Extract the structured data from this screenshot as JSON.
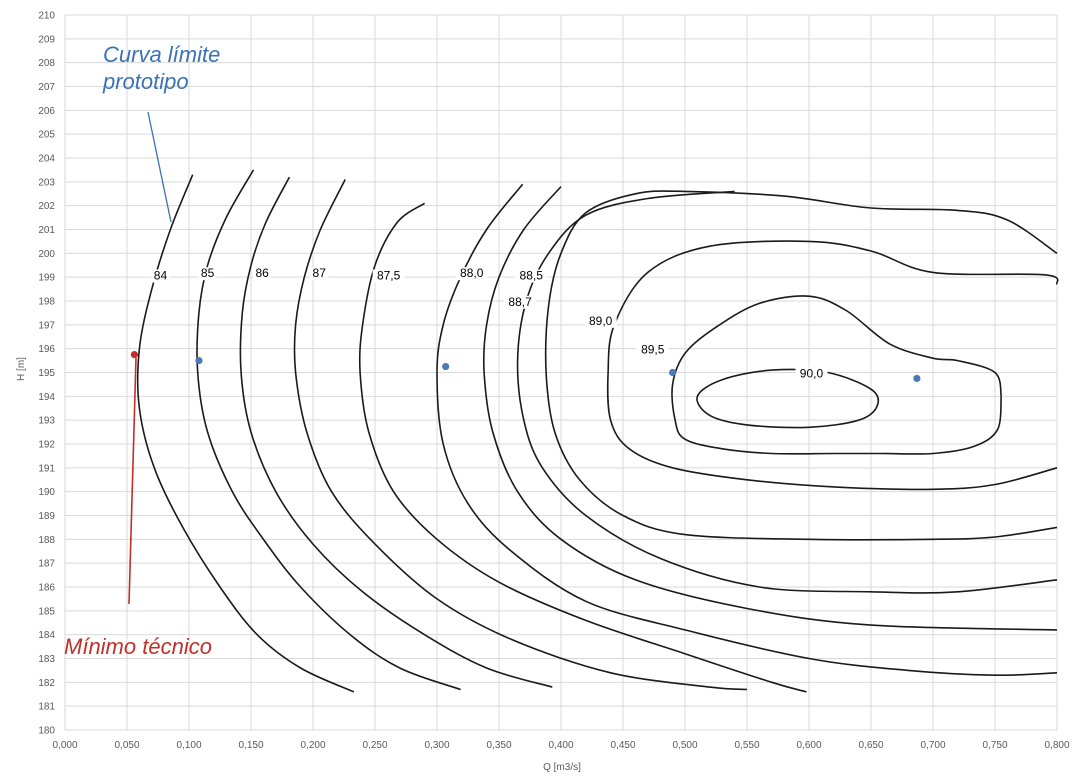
{
  "chart_data": {
    "type": "line",
    "xlabel": "Q [m3/s]",
    "ylabel": "H [m]",
    "xlim": [
      0,
      0.8
    ],
    "ylim": [
      180,
      210
    ],
    "grid": true,
    "x_ticks": [
      0,
      0.05,
      0.1,
      0.15,
      0.2,
      0.25,
      0.3,
      0.35,
      0.4,
      0.45,
      0.5,
      0.55,
      0.6,
      0.65,
      0.7,
      0.75,
      0.8
    ],
    "x_tick_labels": [
      "0,000",
      "0,050",
      "0,100",
      "0,150",
      "0,200",
      "0,250",
      "0,300",
      "0,350",
      "0,400",
      "0,450",
      "0,500",
      "0,550",
      "0,600",
      "0,650",
      "0,700",
      "0,750",
      "0,800"
    ],
    "y_ticks": [
      180,
      181,
      182,
      183,
      184,
      185,
      186,
      187,
      188,
      189,
      190,
      191,
      192,
      193,
      194,
      195,
      196,
      197,
      198,
      199,
      200,
      201,
      202,
      203,
      204,
      205,
      206,
      207,
      208,
      209,
      210
    ],
    "series": [
      {
        "name": "84",
        "label_at": [
          0.077,
          198.9
        ],
        "closed": false,
        "points": [
          [
            0.103,
            203.3
          ],
          [
            0.085,
            201.0
          ],
          [
            0.07,
            198.5
          ],
          [
            0.06,
            196.0
          ],
          [
            0.06,
            193.5
          ],
          [
            0.072,
            191.0
          ],
          [
            0.095,
            188.5
          ],
          [
            0.125,
            186.0
          ],
          [
            0.155,
            184.0
          ],
          [
            0.19,
            182.6
          ],
          [
            0.233,
            181.6
          ]
        ]
      },
      {
        "name": "85",
        "label_at": [
          0.115,
          199.0
        ],
        "closed": false,
        "points": [
          [
            0.152,
            203.5
          ],
          [
            0.13,
            201.5
          ],
          [
            0.115,
            199.5
          ],
          [
            0.108,
            197.5
          ],
          [
            0.107,
            195.0
          ],
          [
            0.115,
            192.5
          ],
          [
            0.135,
            190.0
          ],
          [
            0.16,
            188.0
          ],
          [
            0.19,
            186.0
          ],
          [
            0.23,
            184.0
          ],
          [
            0.27,
            182.6
          ],
          [
            0.319,
            181.7
          ]
        ]
      },
      {
        "name": "86",
        "label_at": [
          0.159,
          199.0
        ],
        "closed": false,
        "points": [
          [
            0.181,
            203.2
          ],
          [
            0.162,
            201.3
          ],
          [
            0.15,
            199.5
          ],
          [
            0.143,
            197.5
          ],
          [
            0.142,
            195.0
          ],
          [
            0.15,
            192.5
          ],
          [
            0.17,
            190.0
          ],
          [
            0.2,
            187.8
          ],
          [
            0.24,
            185.8
          ],
          [
            0.29,
            184.0
          ],
          [
            0.34,
            182.6
          ],
          [
            0.393,
            181.8
          ]
        ]
      },
      {
        "name": "87",
        "label_at": [
          0.205,
          199.0
        ],
        "closed": false,
        "points": [
          [
            0.226,
            203.1
          ],
          [
            0.206,
            201.0
          ],
          [
            0.193,
            199.0
          ],
          [
            0.186,
            197.0
          ],
          [
            0.186,
            195.0
          ],
          [
            0.195,
            192.5
          ],
          [
            0.215,
            190.0
          ],
          [
            0.25,
            187.8
          ],
          [
            0.3,
            185.5
          ],
          [
            0.36,
            183.8
          ],
          [
            0.44,
            182.4
          ],
          [
            0.52,
            181.8
          ],
          [
            0.55,
            181.7
          ]
        ]
      },
      {
        "name": "87,5",
        "label_at": [
          0.261,
          198.9
        ],
        "closed": false,
        "points": [
          [
            0.29,
            202.1
          ],
          [
            0.268,
            201.3
          ],
          [
            0.25,
            199.5
          ],
          [
            0.24,
            197.0
          ],
          [
            0.238,
            195.0
          ],
          [
            0.245,
            192.5
          ],
          [
            0.265,
            190.0
          ],
          [
            0.3,
            188.0
          ],
          [
            0.35,
            186.2
          ],
          [
            0.42,
            184.6
          ],
          [
            0.5,
            183.2
          ],
          [
            0.57,
            182.0
          ],
          [
            0.598,
            181.6
          ]
        ]
      },
      {
        "name": "88,0",
        "label_at": [
          0.328,
          199.0
        ],
        "closed": false,
        "points": [
          [
            0.369,
            202.9
          ],
          [
            0.34,
            201.0
          ],
          [
            0.319,
            199.0
          ],
          [
            0.305,
            197.0
          ],
          [
            0.3,
            195.0
          ],
          [
            0.305,
            192.0
          ],
          [
            0.325,
            189.5
          ],
          [
            0.36,
            187.5
          ],
          [
            0.42,
            185.4
          ],
          [
            0.5,
            184.2
          ],
          [
            0.6,
            183.0
          ],
          [
            0.68,
            182.5
          ],
          [
            0.75,
            182.3
          ],
          [
            0.8,
            182.4
          ]
        ]
      },
      {
        "name": "88,5",
        "label_at": [
          0.376,
          198.9
        ],
        "closed": false,
        "points": [
          [
            0.4,
            202.8
          ],
          [
            0.37,
            201.0
          ],
          [
            0.35,
            199.0
          ],
          [
            0.34,
            197.0
          ],
          [
            0.338,
            195.0
          ],
          [
            0.345,
            192.5
          ],
          [
            0.365,
            190.0
          ],
          [
            0.4,
            188.0
          ],
          [
            0.46,
            186.3
          ],
          [
            0.55,
            185.1
          ],
          [
            0.65,
            184.4
          ],
          [
            0.8,
            184.2
          ]
        ]
      },
      {
        "name": "88,7",
        "label_at": [
          0.367,
          197.8
        ],
        "closed": false,
        "points": [
          [
            0.54,
            202.6
          ],
          [
            0.47,
            202.3
          ],
          [
            0.42,
            201.6
          ],
          [
            0.39,
            200.0
          ],
          [
            0.372,
            198.0
          ],
          [
            0.365,
            195.5
          ],
          [
            0.37,
            193.0
          ],
          [
            0.385,
            191.0
          ],
          [
            0.42,
            189.0
          ],
          [
            0.48,
            187.2
          ],
          [
            0.56,
            186.0
          ],
          [
            0.65,
            185.8
          ],
          [
            0.72,
            185.8
          ],
          [
            0.8,
            186.3
          ]
        ]
      },
      {
        "name": "89,0",
        "label_at": [
          0.432,
          197.0
        ],
        "closed": false,
        "points": [
          [
            0.8,
            200.0
          ],
          [
            0.76,
            201.4
          ],
          [
            0.72,
            201.8
          ],
          [
            0.65,
            201.9
          ],
          [
            0.58,
            202.4
          ],
          [
            0.5,
            202.6
          ],
          [
            0.46,
            202.5
          ],
          [
            0.42,
            201.7
          ],
          [
            0.4,
            200.0
          ],
          [
            0.39,
            197.8
          ],
          [
            0.388,
            195.0
          ],
          [
            0.395,
            192.5
          ],
          [
            0.415,
            190.5
          ],
          [
            0.45,
            189.0
          ],
          [
            0.5,
            188.2
          ],
          [
            0.6,
            188.0
          ],
          [
            0.7,
            188.0
          ],
          [
            0.75,
            188.1
          ],
          [
            0.8,
            188.5
          ]
        ]
      },
      {
        "name": "89,5",
        "label_at": [
          0.474,
          195.8
        ],
        "closed": false,
        "points": [
          [
            0.8,
            198.7
          ],
          [
            0.79,
            199.1
          ],
          [
            0.7,
            199.2
          ],
          [
            0.65,
            200.1
          ],
          [
            0.6,
            200.5
          ],
          [
            0.52,
            200.3
          ],
          [
            0.47,
            199.2
          ],
          [
            0.443,
            197.0
          ],
          [
            0.438,
            195.0
          ],
          [
            0.44,
            193.0
          ],
          [
            0.455,
            191.8
          ],
          [
            0.49,
            191.0
          ],
          [
            0.55,
            190.5
          ],
          [
            0.62,
            190.2
          ],
          [
            0.7,
            190.1
          ],
          [
            0.75,
            190.3
          ],
          [
            0.8,
            191.0
          ]
        ]
      },
      {
        "name": "90,0",
        "label_at": [
          0.602,
          194.8
        ],
        "closed": false,
        "points": [
          [
            0.755,
            194.0
          ],
          [
            0.75,
            195.0
          ],
          [
            0.72,
            195.5
          ],
          [
            0.7,
            195.6
          ],
          [
            0.665,
            196.2
          ],
          [
            0.63,
            197.6
          ],
          [
            0.6,
            198.2
          ],
          [
            0.56,
            197.9
          ],
          [
            0.525,
            196.9
          ],
          [
            0.5,
            195.8
          ],
          [
            0.49,
            194.5
          ],
          [
            0.492,
            193.0
          ],
          [
            0.5,
            192.2
          ],
          [
            0.53,
            191.8
          ],
          [
            0.57,
            191.6
          ],
          [
            0.62,
            191.6
          ],
          [
            0.66,
            191.6
          ],
          [
            0.7,
            191.6
          ],
          [
            0.733,
            191.9
          ],
          [
            0.752,
            192.6
          ],
          [
            0.755,
            194.0
          ]
        ]
      },
      {
        "name": "",
        "closed": true,
        "points": [
          [
            0.65,
            194.3
          ],
          [
            0.615,
            195.0
          ],
          [
            0.57,
            195.1
          ],
          [
            0.53,
            194.7
          ],
          [
            0.51,
            194.0
          ],
          [
            0.52,
            193.2
          ],
          [
            0.55,
            192.8
          ],
          [
            0.6,
            192.7
          ],
          [
            0.64,
            193.0
          ],
          [
            0.655,
            193.6
          ],
          [
            0.65,
            194.3
          ]
        ]
      }
    ],
    "points_of_interest": [
      {
        "x": 0.056,
        "y": 195.75,
        "color": "#c0302b"
      },
      {
        "x": 0.108,
        "y": 195.5,
        "color": "#4a7ab8"
      },
      {
        "x": 0.307,
        "y": 195.25,
        "color": "#4a7ab8"
      },
      {
        "x": 0.49,
        "y": 195.0,
        "color": "#4a7ab8"
      },
      {
        "x": 0.687,
        "y": 194.75,
        "color": "#4a7ab8"
      }
    ],
    "annotations": [
      {
        "text_lines": [
          "Curva límite",
          "prototipo"
        ],
        "color": "#3a72b8"
      },
      {
        "text_lines": [
          "Mínimo técnico"
        ],
        "color": "#c0302b"
      }
    ]
  }
}
